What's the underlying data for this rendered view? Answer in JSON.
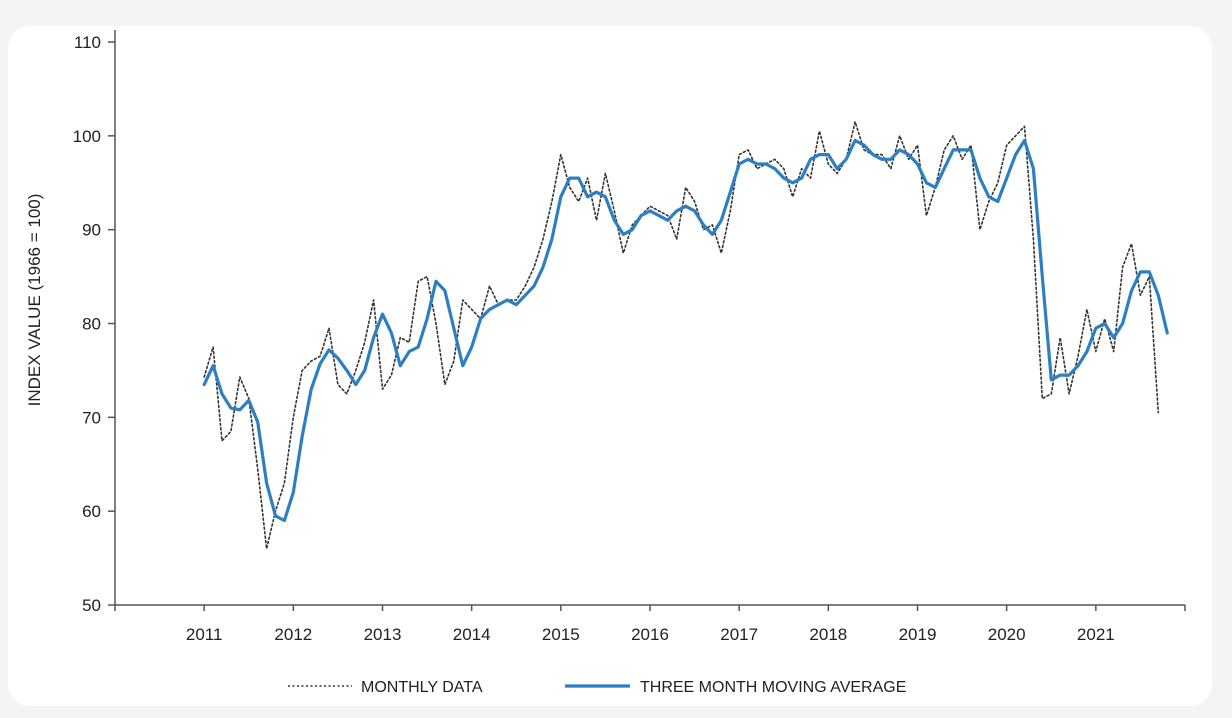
{
  "chart_data": {
    "type": "line",
    "title": "",
    "xlabel": "",
    "ylabel": "INDEX VALUE (1966 = 100)",
    "ylim": [
      50,
      110
    ],
    "yticks": [
      50,
      60,
      70,
      80,
      90,
      100,
      110
    ],
    "xticks": [
      "2011",
      "2012",
      "2013",
      "2014",
      "2015",
      "2016",
      "2017",
      "2018",
      "2019",
      "2020",
      "2021"
    ],
    "grid": false,
    "legend_position": "bottom",
    "colors": {
      "monthly": "#333333",
      "moving_average": "#2e7fc1"
    },
    "series": [
      {
        "name": "MONTHLY DATA",
        "style": "dotted",
        "points": [
          [
            2011.0,
            74.3
          ],
          [
            2011.1,
            77.5
          ],
          [
            2011.2,
            67.5
          ],
          [
            2011.3,
            68.5
          ],
          [
            2011.4,
            74.3
          ],
          [
            2011.5,
            72.0
          ],
          [
            2011.6,
            64.5
          ],
          [
            2011.7,
            56.0
          ],
          [
            2011.8,
            60.0
          ],
          [
            2011.9,
            63.0
          ],
          [
            2012.0,
            70.0
          ],
          [
            2012.1,
            75.0
          ],
          [
            2012.2,
            76.0
          ],
          [
            2012.3,
            76.5
          ],
          [
            2012.4,
            79.5
          ],
          [
            2012.5,
            73.5
          ],
          [
            2012.6,
            72.5
          ],
          [
            2012.7,
            75.0
          ],
          [
            2012.8,
            78.0
          ],
          [
            2012.9,
            82.5
          ],
          [
            2013.0,
            73.0
          ],
          [
            2013.1,
            74.5
          ],
          [
            2013.2,
            78.5
          ],
          [
            2013.3,
            78.0
          ],
          [
            2013.4,
            84.5
          ],
          [
            2013.5,
            85.0
          ],
          [
            2013.6,
            80.0
          ],
          [
            2013.7,
            73.5
          ],
          [
            2013.8,
            76.0
          ],
          [
            2013.9,
            82.5
          ],
          [
            2014.0,
            81.5
          ],
          [
            2014.1,
            80.5
          ],
          [
            2014.2,
            84.0
          ],
          [
            2014.3,
            82.0
          ],
          [
            2014.4,
            82.5
          ],
          [
            2014.5,
            82.5
          ],
          [
            2014.6,
            84.0
          ],
          [
            2014.7,
            86.0
          ],
          [
            2014.8,
            89.0
          ],
          [
            2014.9,
            93.0
          ],
          [
            2015.0,
            98.0
          ],
          [
            2015.1,
            94.5
          ],
          [
            2015.2,
            93.0
          ],
          [
            2015.3,
            95.5
          ],
          [
            2015.4,
            91.0
          ],
          [
            2015.5,
            96.0
          ],
          [
            2015.6,
            92.0
          ],
          [
            2015.7,
            87.5
          ],
          [
            2015.8,
            90.5
          ],
          [
            2015.9,
            91.5
          ],
          [
            2016.0,
            92.5
          ],
          [
            2016.1,
            92.0
          ],
          [
            2016.2,
            91.5
          ],
          [
            2016.3,
            89.0
          ],
          [
            2016.4,
            94.5
          ],
          [
            2016.5,
            93.0
          ],
          [
            2016.6,
            90.0
          ],
          [
            2016.7,
            90.5
          ],
          [
            2016.8,
            87.5
          ],
          [
            2016.9,
            92.0
          ],
          [
            2017.0,
            98.0
          ],
          [
            2017.1,
            98.5
          ],
          [
            2017.2,
            96.5
          ],
          [
            2017.3,
            97.0
          ],
          [
            2017.4,
            97.5
          ],
          [
            2017.5,
            96.5
          ],
          [
            2017.6,
            93.5
          ],
          [
            2017.7,
            96.5
          ],
          [
            2017.8,
            95.5
          ],
          [
            2017.9,
            100.5
          ],
          [
            2018.0,
            97.0
          ],
          [
            2018.1,
            96.0
          ],
          [
            2018.2,
            97.5
          ],
          [
            2018.3,
            101.5
          ],
          [
            2018.4,
            98.5
          ],
          [
            2018.5,
            98.0
          ],
          [
            2018.6,
            98.0
          ],
          [
            2018.7,
            96.5
          ],
          [
            2018.8,
            100.0
          ],
          [
            2018.9,
            97.5
          ],
          [
            2019.0,
            99.0
          ],
          [
            2019.1,
            91.5
          ],
          [
            2019.2,
            94.5
          ],
          [
            2019.3,
            98.5
          ],
          [
            2019.4,
            100.0
          ],
          [
            2019.5,
            97.5
          ],
          [
            2019.6,
            99.0
          ],
          [
            2019.7,
            90.0
          ],
          [
            2019.8,
            93.0
          ],
          [
            2019.9,
            95.0
          ],
          [
            2020.0,
            99.0
          ],
          [
            2020.1,
            100.0
          ],
          [
            2020.2,
            101.0
          ],
          [
            2020.3,
            89.0
          ],
          [
            2020.4,
            72.0
          ],
          [
            2020.5,
            72.5
          ],
          [
            2020.6,
            78.5
          ],
          [
            2020.7,
            72.5
          ],
          [
            2020.8,
            76.5
          ],
          [
            2020.9,
            81.5
          ],
          [
            2021.0,
            77.0
          ],
          [
            2021.1,
            80.5
          ],
          [
            2021.2,
            77.0
          ],
          [
            2021.3,
            86.0
          ],
          [
            2021.4,
            88.5
          ],
          [
            2021.5,
            83.0
          ],
          [
            2021.6,
            85.0
          ],
          [
            2021.7,
            70.5
          ]
        ]
      },
      {
        "name": "THREE MONTH MOVING AVERAGE",
        "style": "solid",
        "points": [
          [
            2011.0,
            73.5
          ],
          [
            2011.1,
            75.5
          ],
          [
            2011.2,
            72.5
          ],
          [
            2011.3,
            71.0
          ],
          [
            2011.4,
            70.8
          ],
          [
            2011.5,
            71.8
          ],
          [
            2011.6,
            69.5
          ],
          [
            2011.7,
            63.0
          ],
          [
            2011.8,
            59.5
          ],
          [
            2011.9,
            59.0
          ],
          [
            2012.0,
            62.0
          ],
          [
            2012.1,
            68.0
          ],
          [
            2012.2,
            73.0
          ],
          [
            2012.3,
            75.7
          ],
          [
            2012.4,
            77.2
          ],
          [
            2012.5,
            76.3
          ],
          [
            2012.6,
            75.0
          ],
          [
            2012.7,
            73.5
          ],
          [
            2012.8,
            75.0
          ],
          [
            2012.9,
            78.5
          ],
          [
            2013.0,
            81.0
          ],
          [
            2013.1,
            79.0
          ],
          [
            2013.2,
            75.5
          ],
          [
            2013.3,
            77.0
          ],
          [
            2013.4,
            77.5
          ],
          [
            2013.5,
            80.5
          ],
          [
            2013.6,
            84.5
          ],
          [
            2013.7,
            83.5
          ],
          [
            2013.8,
            79.5
          ],
          [
            2013.9,
            75.5
          ],
          [
            2014.0,
            77.5
          ],
          [
            2014.1,
            80.5
          ],
          [
            2014.2,
            81.5
          ],
          [
            2014.3,
            82.0
          ],
          [
            2014.4,
            82.5
          ],
          [
            2014.5,
            82.0
          ],
          [
            2014.6,
            83.0
          ],
          [
            2014.7,
            84.0
          ],
          [
            2014.8,
            86.0
          ],
          [
            2014.9,
            89.0
          ],
          [
            2015.0,
            93.5
          ],
          [
            2015.1,
            95.5
          ],
          [
            2015.2,
            95.5
          ],
          [
            2015.3,
            93.5
          ],
          [
            2015.4,
            94.0
          ],
          [
            2015.5,
            93.5
          ],
          [
            2015.6,
            91.0
          ],
          [
            2015.7,
            89.5
          ],
          [
            2015.8,
            90.0
          ],
          [
            2015.9,
            91.5
          ],
          [
            2016.0,
            92.0
          ],
          [
            2016.1,
            91.5
          ],
          [
            2016.2,
            91.0
          ],
          [
            2016.3,
            92.0
          ],
          [
            2016.4,
            92.5
          ],
          [
            2016.5,
            92.0
          ],
          [
            2016.6,
            90.5
          ],
          [
            2016.7,
            89.5
          ],
          [
            2016.8,
            91.0
          ],
          [
            2016.9,
            94.0
          ],
          [
            2017.0,
            97.0
          ],
          [
            2017.1,
            97.5
          ],
          [
            2017.2,
            97.0
          ],
          [
            2017.3,
            97.0
          ],
          [
            2017.4,
            96.5
          ],
          [
            2017.5,
            95.5
          ],
          [
            2017.6,
            95.0
          ],
          [
            2017.7,
            95.5
          ],
          [
            2017.8,
            97.5
          ],
          [
            2017.9,
            98.0
          ],
          [
            2018.0,
            98.0
          ],
          [
            2018.1,
            96.5
          ],
          [
            2018.2,
            97.5
          ],
          [
            2018.3,
            99.5
          ],
          [
            2018.4,
            99.0
          ],
          [
            2018.5,
            98.0
          ],
          [
            2018.6,
            97.5
          ],
          [
            2018.7,
            97.5
          ],
          [
            2018.8,
            98.5
          ],
          [
            2018.9,
            98.0
          ],
          [
            2019.0,
            97.0
          ],
          [
            2019.1,
            95.0
          ],
          [
            2019.2,
            94.5
          ],
          [
            2019.3,
            96.5
          ],
          [
            2019.4,
            98.5
          ],
          [
            2019.5,
            98.5
          ],
          [
            2019.6,
            98.5
          ],
          [
            2019.7,
            95.5
          ],
          [
            2019.8,
            93.5
          ],
          [
            2019.9,
            93.0
          ],
          [
            2020.0,
            95.5
          ],
          [
            2020.1,
            98.0
          ],
          [
            2020.2,
            99.5
          ],
          [
            2020.3,
            96.5
          ],
          [
            2020.4,
            85.0
          ],
          [
            2020.5,
            74.0
          ],
          [
            2020.6,
            74.5
          ],
          [
            2020.7,
            74.5
          ],
          [
            2020.8,
            75.5
          ],
          [
            2020.9,
            77.0
          ],
          [
            2021.0,
            79.5
          ],
          [
            2021.1,
            80.0
          ],
          [
            2021.2,
            78.5
          ],
          [
            2021.3,
            80.0
          ],
          [
            2021.4,
            83.5
          ],
          [
            2021.5,
            85.5
          ],
          [
            2021.6,
            85.5
          ],
          [
            2021.7,
            83.0
          ],
          [
            2021.8,
            79.0
          ]
        ]
      }
    ]
  }
}
